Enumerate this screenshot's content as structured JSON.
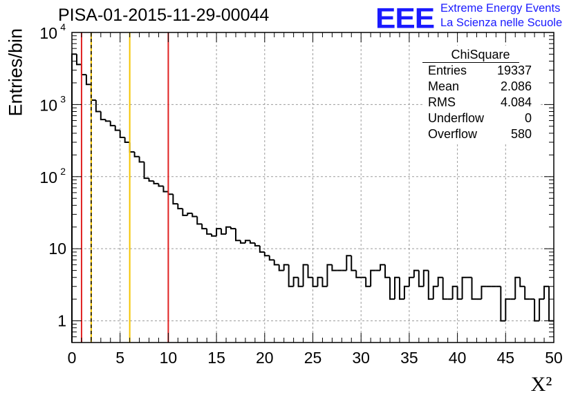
{
  "header": {
    "run_title": "PISA-01-2015-11-29-00044",
    "logo_text": "EEE",
    "tagline_1": "Extreme Energy Events",
    "tagline_2": "La Scienza nelle Scuole",
    "accent_color": "#1a1aff"
  },
  "stats_box": {
    "title": "ChiSquare",
    "rows": [
      {
        "key": "Entries",
        "value": "19337"
      },
      {
        "key": "Mean",
        "value": "2.086"
      },
      {
        "key": "RMS",
        "value": "4.084"
      },
      {
        "key": "Underflow",
        "value": "0"
      },
      {
        "key": "Overflow",
        "value": "580"
      }
    ]
  },
  "chart_data": {
    "type": "histogram",
    "title": "PISA-01-2015-11-29-00044",
    "xlabel": "X²",
    "ylabel": "Entries/bin",
    "yscale": "log",
    "xlim": [
      0,
      50
    ],
    "ylim": [
      0.5,
      10000
    ],
    "grid": true,
    "bin_width": 0.5,
    "x_ticks": [
      "0",
      "5",
      "10",
      "15",
      "20",
      "25",
      "30",
      "35",
      "40",
      "45",
      "50"
    ],
    "y_ticks": [
      {
        "value": 1,
        "label": "1"
      },
      {
        "value": 10,
        "label": "10"
      },
      {
        "value": 100,
        "base": "10",
        "exp": "2"
      },
      {
        "value": 1000,
        "base": "10",
        "exp": "3"
      },
      {
        "value": 10000,
        "base": "10",
        "exp": "4"
      }
    ],
    "bin_values": [
      5000,
      3600,
      2600,
      1900,
      1150,
      800,
      620,
      590,
      510,
      440,
      350,
      300,
      220,
      190,
      160,
      95,
      87,
      80,
      74,
      62,
      57,
      42,
      36,
      29,
      31,
      28,
      22,
      19,
      16,
      15,
      19,
      16,
      20,
      19,
      13,
      12,
      13,
      12,
      11,
      9,
      8,
      7,
      6,
      5,
      6,
      3,
      4,
      3,
      6,
      4,
      3,
      4,
      3,
      6,
      5,
      5,
      5,
      8,
      5,
      4,
      4,
      3,
      5,
      5,
      6,
      4,
      2,
      4,
      2,
      3,
      4,
      5,
      3,
      5,
      2,
      3,
      4,
      2,
      2,
      3,
      2,
      4,
      4,
      2,
      2,
      3,
      3,
      3,
      3,
      1,
      2,
      2,
      4,
      3,
      2,
      2,
      1,
      2,
      3,
      1
    ],
    "vertical_lines": [
      {
        "x": 1.0,
        "color": "#e02020",
        "style": "solid"
      },
      {
        "x": 2.0,
        "color": "#f5c400",
        "style": "solid"
      },
      {
        "x": 2.0,
        "color": "#000000",
        "style": "dashed"
      },
      {
        "x": 6.0,
        "color": "#f5c400",
        "style": "solid"
      },
      {
        "x": 10.0,
        "color": "#e02020",
        "style": "solid"
      }
    ]
  }
}
